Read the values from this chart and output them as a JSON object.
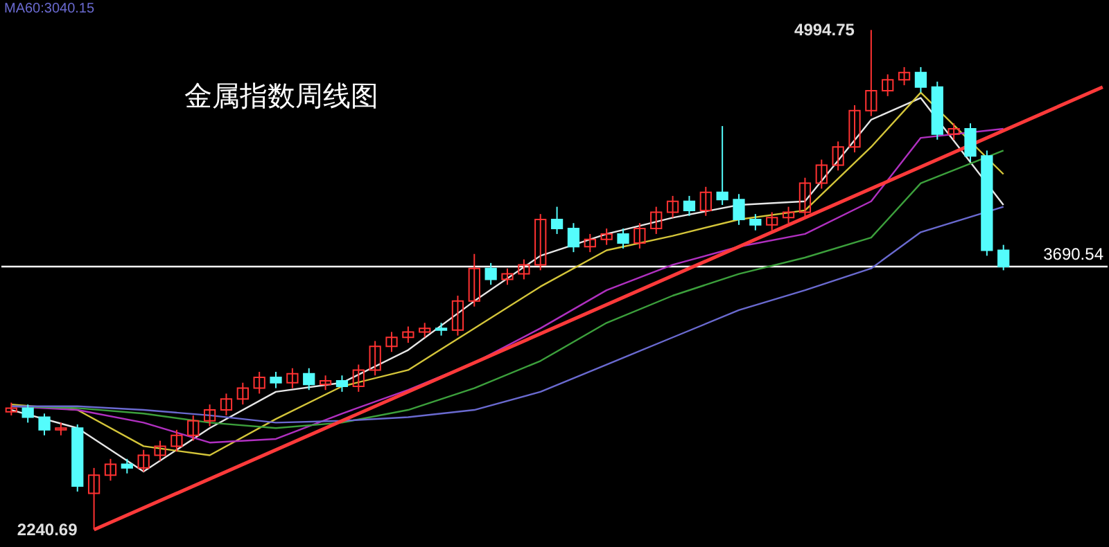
{
  "chart_data": {
    "type": "candlestick",
    "title": "金属指数周线图",
    "annotations": [
      "MA60:3040.15",
      "4994.75",
      "2240.69"
    ],
    "categories": [
      null,
      null,
      null,
      null,
      null,
      null,
      null,
      null,
      null,
      null,
      null,
      null,
      null,
      null,
      null,
      null,
      null,
      null,
      null,
      null,
      null,
      null,
      null,
      null,
      null,
      null,
      null,
      null,
      null,
      null,
      null,
      null,
      null,
      null,
      null,
      null,
      null,
      null,
      null,
      null,
      null,
      null,
      null,
      null,
      null,
      null,
      null,
      null,
      null,
      null,
      null,
      null,
      null,
      null,
      null,
      null,
      null,
      null,
      null,
      null,
      null,
      null,
      null,
      null,
      null,
      null,
      null
    ],
    "ohlc": [
      [
        2890,
        2940,
        2870,
        2910
      ],
      [
        2910,
        2930,
        2830,
        2860
      ],
      [
        2860,
        2880,
        2760,
        2790
      ],
      [
        2790,
        2830,
        2760,
        2800
      ],
      [
        2800,
        2820,
        2450,
        2480
      ],
      [
        2440,
        2580,
        2240.69,
        2540
      ],
      [
        2540,
        2630,
        2510,
        2600
      ],
      [
        2600,
        2630,
        2550,
        2580
      ],
      [
        2580,
        2680,
        2560,
        2650
      ],
      [
        2650,
        2730,
        2620,
        2700
      ],
      [
        2700,
        2790,
        2670,
        2760
      ],
      [
        2760,
        2870,
        2730,
        2840
      ],
      [
        2840,
        2930,
        2810,
        2900
      ],
      [
        2900,
        2990,
        2870,
        2960
      ],
      [
        2960,
        3050,
        2930,
        3020
      ],
      [
        3020,
        3110,
        2990,
        3080
      ],
      [
        3080,
        3110,
        3020,
        3050
      ],
      [
        3050,
        3130,
        3020,
        3100
      ],
      [
        3100,
        3130,
        3010,
        3040
      ],
      [
        3040,
        3090,
        3010,
        3060
      ],
      [
        3060,
        3090,
        3000,
        3030
      ],
      [
        3030,
        3150,
        3000,
        3120
      ],
      [
        3120,
        3280,
        3090,
        3250
      ],
      [
        3250,
        3330,
        3220,
        3300
      ],
      [
        3300,
        3360,
        3270,
        3330
      ],
      [
        3330,
        3380,
        3300,
        3350
      ],
      [
        3350,
        3380,
        3310,
        3340
      ],
      [
        3340,
        3530,
        3310,
        3500
      ],
      [
        3500,
        3760,
        3470,
        3680
      ],
      [
        3680,
        3710,
        3590,
        3620
      ],
      [
        3620,
        3680,
        3590,
        3650
      ],
      [
        3650,
        3730,
        3620,
        3700
      ],
      [
        3700,
        3980,
        3670,
        3950
      ],
      [
        3950,
        4020,
        3870,
        3900
      ],
      [
        3900,
        3930,
        3770,
        3800
      ],
      [
        3800,
        3870,
        3770,
        3840
      ],
      [
        3840,
        3900,
        3810,
        3870
      ],
      [
        3870,
        3900,
        3790,
        3820
      ],
      [
        3820,
        3930,
        3790,
        3900
      ],
      [
        3900,
        4020,
        3870,
        3990
      ],
      [
        3990,
        4080,
        3960,
        4050
      ],
      [
        4050,
        4080,
        3970,
        4000
      ],
      [
        4000,
        4130,
        3970,
        4100
      ],
      [
        4100,
        4465,
        4030,
        4060
      ],
      [
        4060,
        4090,
        3920,
        3950
      ],
      [
        3950,
        3980,
        3890,
        3920
      ],
      [
        3920,
        3990,
        3890,
        3960
      ],
      [
        3960,
        4020,
        3930,
        3990
      ],
      [
        3990,
        4180,
        3960,
        4150
      ],
      [
        4150,
        4280,
        4120,
        4250
      ],
      [
        4250,
        4380,
        4220,
        4350
      ],
      [
        4350,
        4580,
        4320,
        4550
      ],
      [
        4550,
        4994.75,
        4520,
        4660
      ],
      [
        4660,
        4750,
        4630,
        4720
      ],
      [
        4720,
        4790,
        4690,
        4760
      ],
      [
        4760,
        4790,
        4650,
        4680
      ],
      [
        4680,
        4710,
        4390,
        4420
      ],
      [
        4420,
        4480,
        4390,
        4450
      ],
      [
        4450,
        4480,
        4270,
        4300
      ],
      [
        4300,
        4330,
        3750,
        3780
      ],
      [
        3780,
        3810,
        3670,
        3690.54
      ],
      null,
      null,
      null,
      null,
      null,
      null
    ],
    "series": [
      {
        "type": "line",
        "color": "#e6e6e6",
        "values": [
          2900,
          null,
          null,
          null,
          2800,
          null,
          null,
          null,
          2560,
          null,
          null,
          null,
          2800,
          null,
          null,
          null,
          3000,
          null,
          null,
          null,
          3050,
          null,
          null,
          null,
          3230,
          null,
          null,
          null,
          3500,
          null,
          null,
          null,
          3750,
          null,
          null,
          null,
          3870,
          null,
          null,
          null,
          3960,
          null,
          null,
          null,
          4030,
          null,
          null,
          null,
          4050,
          null,
          null,
          null,
          4500,
          null,
          null,
          4620,
          null,
          null,
          null,
          null,
          4030,
          null,
          null,
          null,
          null,
          null,
          null
        ]
      },
      {
        "type": "line",
        "color": "#d4c53a",
        "values": [
          2930,
          null,
          null,
          null,
          2900,
          null,
          null,
          null,
          2700,
          null,
          null,
          null,
          2650,
          null,
          null,
          null,
          2850,
          null,
          null,
          null,
          3030,
          null,
          null,
          null,
          3120,
          null,
          null,
          null,
          3350,
          null,
          null,
          null,
          3580,
          null,
          null,
          null,
          3780,
          null,
          null,
          null,
          3860,
          null,
          null,
          null,
          3950,
          null,
          null,
          null,
          4000,
          null,
          null,
          null,
          4350,
          null,
          null,
          4650,
          null,
          null,
          null,
          null,
          4200,
          null,
          null,
          null,
          null,
          null,
          null
        ]
      },
      {
        "type": "line",
        "color": "#b030c0",
        "values": [
          2920,
          null,
          null,
          null,
          2900,
          null,
          null,
          null,
          2830,
          null,
          null,
          null,
          2720,
          null,
          null,
          null,
          2740,
          null,
          null,
          null,
          2880,
          null,
          null,
          null,
          3010,
          null,
          null,
          null,
          3160,
          null,
          null,
          null,
          3350,
          null,
          null,
          null,
          3560,
          null,
          null,
          null,
          3700,
          null,
          null,
          null,
          3800,
          null,
          null,
          null,
          3870,
          null,
          null,
          null,
          4050,
          null,
          null,
          4400,
          null,
          null,
          null,
          null,
          4450,
          null,
          null,
          null,
          null,
          null,
          null
        ]
      },
      {
        "type": "line",
        "color": "#3ca03c",
        "values": [
          2920,
          null,
          null,
          null,
          2910,
          null,
          null,
          null,
          2880,
          null,
          null,
          null,
          2830,
          null,
          null,
          null,
          2800,
          null,
          null,
          null,
          2830,
          null,
          null,
          null,
          2900,
          null,
          null,
          null,
          3020,
          null,
          null,
          null,
          3170,
          null,
          null,
          null,
          3380,
          null,
          null,
          null,
          3530,
          null,
          null,
          null,
          3650,
          null,
          null,
          null,
          3740,
          null,
          null,
          null,
          3850,
          null,
          null,
          4150,
          null,
          null,
          null,
          null,
          4330,
          null,
          null,
          null,
          null,
          null,
          null
        ]
      },
      {
        "type": "line",
        "color": "#6a6ad0",
        "values": [
          2920,
          null,
          null,
          null,
          2920,
          null,
          null,
          null,
          2900,
          null,
          null,
          null,
          2870,
          null,
          null,
          null,
          2830,
          null,
          null,
          null,
          2840,
          null,
          null,
          null,
          2860,
          null,
          null,
          null,
          2900,
          null,
          null,
          null,
          3000,
          null,
          null,
          null,
          3150,
          null,
          null,
          null,
          3300,
          null,
          null,
          null,
          3450,
          null,
          null,
          null,
          3560,
          null,
          null,
          null,
          3680,
          null,
          null,
          3880,
          null,
          null,
          null,
          null,
          4020,
          null,
          null,
          null,
          null,
          null,
          null
        ]
      },
      {
        "type": "line",
        "color": "#ff3a3a",
        "values": [
          null,
          null,
          null,
          null,
          null,
          2240,
          null,
          null,
          null,
          null,
          null,
          null,
          null,
          null,
          null,
          null,
          null,
          null,
          null,
          null,
          null,
          null,
          null,
          null,
          null,
          null,
          null,
          null,
          null,
          null,
          null,
          null,
          null,
          null,
          null,
          null,
          null,
          null,
          null,
          null,
          null,
          null,
          null,
          null,
          null,
          null,
          null,
          null,
          null,
          null,
          null,
          null,
          null,
          null,
          null,
          null,
          null,
          null,
          null,
          null,
          null,
          null,
          null,
          null,
          null,
          null,
          4680
        ]
      }
    ],
    "ref_lines": [
      {
        "axis": "y",
        "value": 3690.54,
        "label": "3690.54",
        "color": "#ffffff"
      }
    ]
  }
}
